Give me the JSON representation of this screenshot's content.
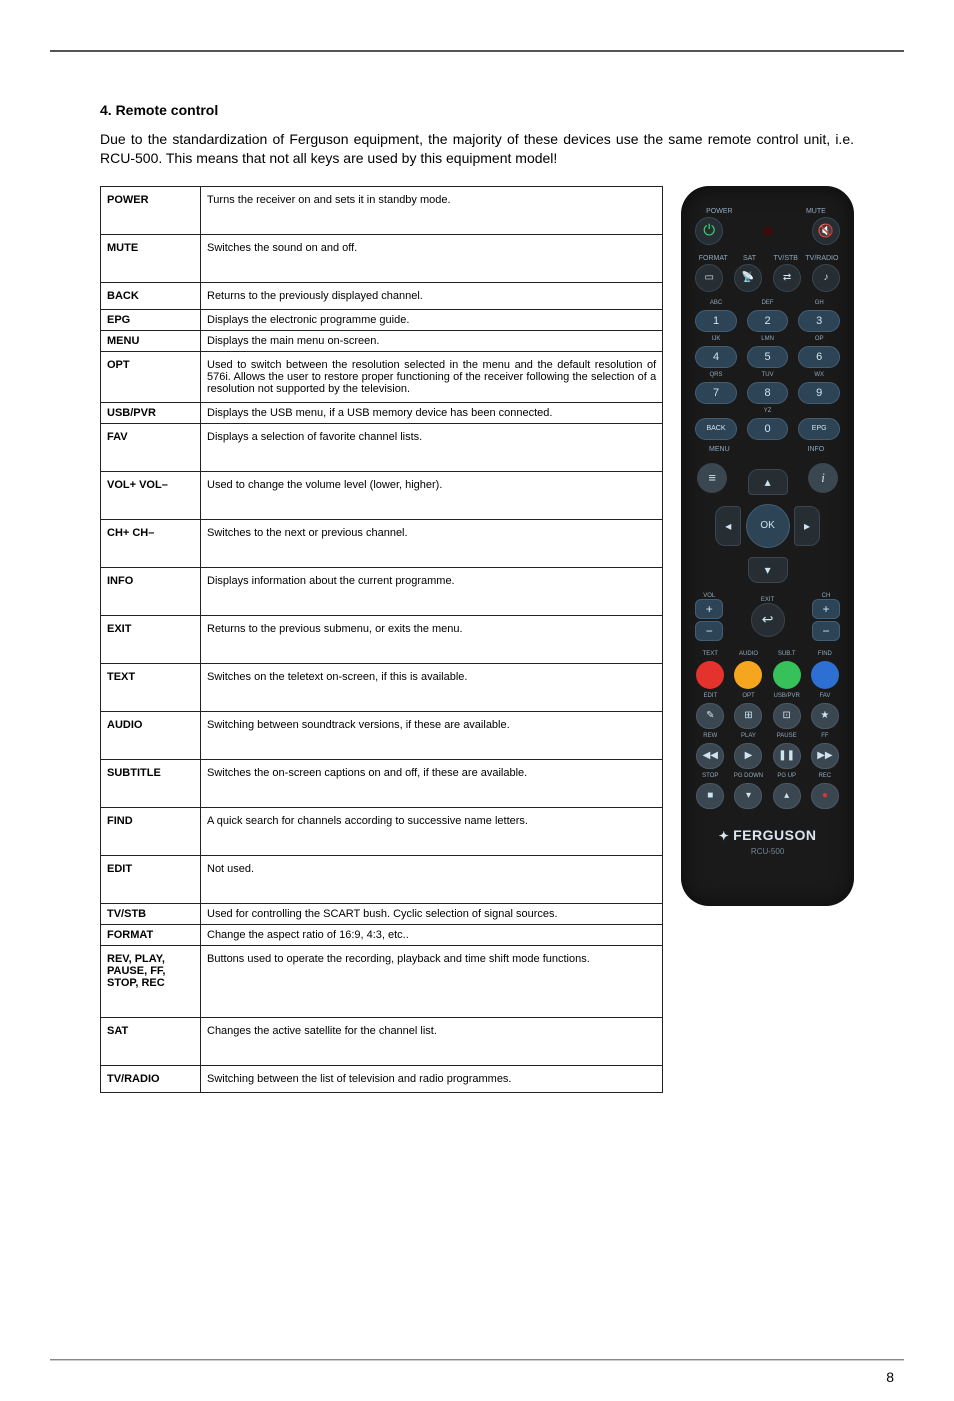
{
  "heading": "4. Remote control",
  "intro": "Due to the standardization of Ferguson equipment, the majority of these devices use the same remote control unit, i.e. RCU-500. This means that not all keys are used by this equipment model!",
  "table": [
    {
      "k": "POWER",
      "v": "Turns the receiver on and sets it in standby mode."
    },
    {
      "k": "MUTE",
      "v": "Switches the sound on and off."
    },
    {
      "k": "BACK",
      "v": "Returns to the previously displayed channel."
    },
    {
      "k": "EPG",
      "v": "Displays the electronic programme guide."
    },
    {
      "k": "MENU",
      "v": "Displays the main menu on-screen."
    },
    {
      "k": "OPT",
      "v": "Used to switch between the resolution selected in the menu and the default resolution of 576i. Allows the user to restore proper functioning of the receiver following the selection of a resolution not supported by the television."
    },
    {
      "k": "USB/PVR",
      "v": "Displays the USB menu, if a USB memory device has been connected."
    },
    {
      "k": "FAV",
      "v": "Displays a selection of favorite channel lists."
    },
    {
      "k": "VOL+ VOL–",
      "v": "Used to change the volume level (lower, higher)."
    },
    {
      "k": "CH+ CH–",
      "v": "Switches to the next or previous channel."
    },
    {
      "k": "INFO",
      "v": "Displays information about the current programme."
    },
    {
      "k": "EXIT",
      "v": "Returns to the previous submenu, or exits the menu."
    },
    {
      "k": "TEXT",
      "v": "Switches on the teletext on-screen, if this is available."
    },
    {
      "k": "AUDIO",
      "v": "Switching between soundtrack versions, if these are available."
    },
    {
      "k": "SUBTITLE",
      "v": "Switches the on-screen captions on and off, if these are available."
    },
    {
      "k": "FIND",
      "v": "A quick search for channels according to successive name letters."
    },
    {
      "k": "EDIT",
      "v": "Not used."
    },
    {
      "k": "TV/STB",
      "v": "Used for controlling the SCART bush. Cyclic selection of signal sources."
    },
    {
      "k": "FORMAT",
      "v": "Change the aspect ratio of 16:9, 4:3, etc.."
    },
    {
      "k": "REV, PLAY, PAUSE, FF, STOP, REC",
      "v": "Buttons used to operate the recording, playback and time shift mode functions."
    },
    {
      "k": "SAT",
      "v": "Changes the active satellite for the channel list."
    },
    {
      "k": "TV/RADIO",
      "v": "Switching between the list of television and radio programmes."
    }
  ],
  "remote": {
    "top": {
      "power": "POWER",
      "mute": "MUTE"
    },
    "row2": [
      "FORMAT",
      "SAT",
      "TV/STB",
      "TV/RADIO"
    ],
    "numLabels": [
      "ABC",
      "DEF",
      "GH",
      "IJK",
      "LMN",
      "OP",
      "QRS",
      "TUV",
      "WX",
      "",
      "YZ",
      ""
    ],
    "nums": [
      "1",
      "2",
      "3",
      "4",
      "5",
      "6",
      "7",
      "8",
      "9",
      "BACK",
      "0",
      "EPG"
    ],
    "dpadLabels": {
      "menu": "MENU",
      "info": "INFO",
      "ok": "OK",
      "exit": "EXIT",
      "vol": "VOL",
      "ch": "CH"
    },
    "colorRow": [
      "TEXT",
      "AUDIO",
      "SUB.T",
      "FIND"
    ],
    "colorHex": [
      "#e4322c",
      "#f5a61e",
      "#36c15a",
      "#2d6fd2"
    ],
    "grayRow": [
      "EDIT",
      "OPT",
      "USB/PVR",
      "FAV"
    ],
    "transport1": [
      "REW",
      "PLAY",
      "PAUSE",
      "FF"
    ],
    "transport1Sym": [
      "◀◀",
      "▶",
      "❚❚",
      "▶▶"
    ],
    "transport2": [
      "STOP",
      "PG DOWN",
      "PG UP",
      "REC"
    ],
    "transport2Sym": [
      "■",
      "▾",
      "▴",
      "●"
    ],
    "recColor": "#e4322c",
    "brand": "FERGUSON",
    "model": "RCU-500"
  },
  "pageNumber": "8"
}
